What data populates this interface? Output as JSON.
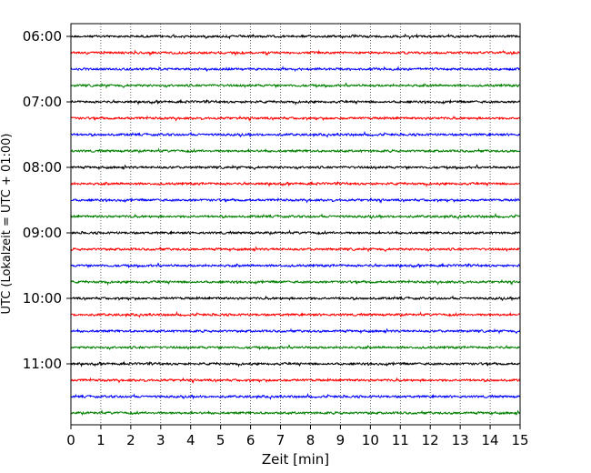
{
  "chart_data": {
    "type": "line",
    "title": "",
    "xlabel": "Zeit  [min]",
    "ylabel": "UTC (Lokalzeit = UTC + 01:00)",
    "xlim": [
      0,
      15
    ],
    "x_ticks": [
      0,
      1,
      2,
      3,
      4,
      5,
      6,
      7,
      8,
      9,
      10,
      11,
      12,
      13,
      14,
      15
    ],
    "y_tick_labels": [
      "06:00",
      "07:00",
      "08:00",
      "09:00",
      "10:00",
      "11:00"
    ],
    "trace_start": "06:00",
    "trace_interval_minutes": 15,
    "trace_count": 24,
    "trace_colors": [
      "#000000",
      "#ff0000",
      "#0000ff",
      "#008000"
    ],
    "grid": "vertical dotted at each minute",
    "legend": "none"
  }
}
